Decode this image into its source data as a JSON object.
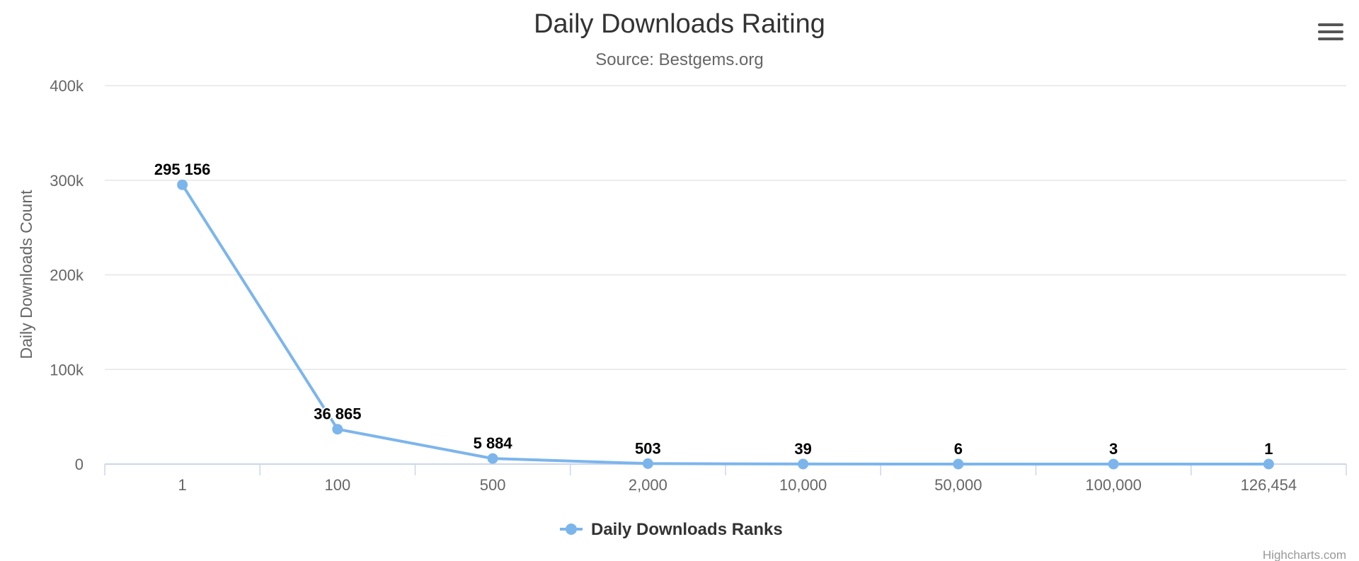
{
  "menu": {
    "icon": "hamburger-menu-icon"
  },
  "credits": "Highcharts.com",
  "colors": {
    "series": "#7cb5ec",
    "grid": "#e6e6e6",
    "axis": "#ccd6eb",
    "text": "#666666",
    "title": "#333333"
  },
  "chart_data": {
    "type": "line",
    "title": "Daily Downloads Raiting",
    "subtitle": "Source: Bestgems.org",
    "xlabel": "",
    "ylabel": "Daily Downloads Count",
    "categories": [
      "1",
      "100",
      "500",
      "2,000",
      "10,000",
      "50,000",
      "100,000",
      "126,454"
    ],
    "series": [
      {
        "name": "Daily Downloads Ranks",
        "values": [
          295156,
          36865,
          5884,
          503,
          39,
          6,
          3,
          1
        ],
        "labels": [
          "295 156",
          "36 865",
          "5 884",
          "503",
          "39",
          "6",
          "3",
          "1"
        ]
      }
    ],
    "ylim": [
      0,
      400000
    ],
    "yticks": [
      "0",
      "100k",
      "200k",
      "300k",
      "400k"
    ],
    "grid": true,
    "legend": "bottom-center",
    "markers": true,
    "data_labels": true
  }
}
